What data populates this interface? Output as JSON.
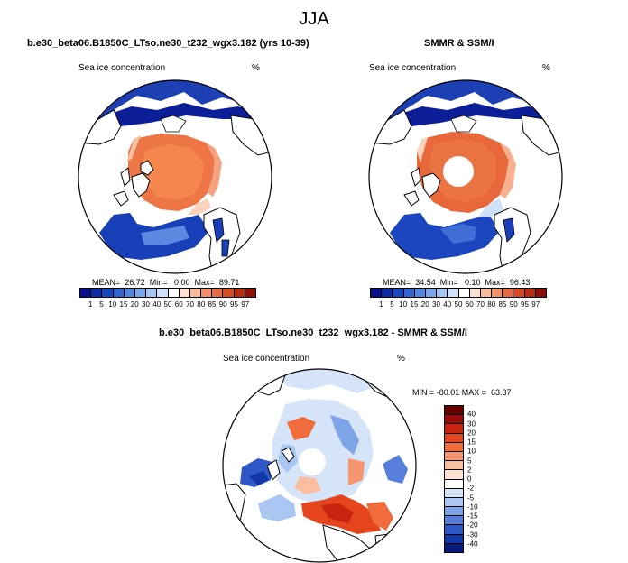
{
  "title": "JJA",
  "panels": {
    "model": {
      "header": "b.e30_beta06.B1850C_LTso.ne30_t232_wgx3.182 (yrs 10-39)",
      "variable": "Sea ice concentration",
      "units": "%",
      "stats": "MEAN=  26.72  Min=   0.00  Max=  89.71"
    },
    "obs": {
      "header": "SMMR & SSM/I",
      "variable": "Sea ice concentration",
      "units": "%",
      "stats": "MEAN=  34.54  Min=   0.10  Max=  96.43"
    },
    "diff": {
      "header": "b.e30_beta06.B1850C_LTso.ne30_t232_wgx3.182 - SMMR & SSM/I",
      "variable": "Sea ice concentration",
      "units": "%",
      "stats": "MIN = -80.01 MAX =  63.37"
    }
  },
  "colorbars": {
    "concentration": {
      "labels": [
        "1",
        "5",
        "10",
        "15",
        "20",
        "30",
        "40",
        "50",
        "60",
        "70",
        "80",
        "85",
        "90",
        "95",
        "97"
      ],
      "colors": [
        "#08108c",
        "#0a2aa6",
        "#1747c0",
        "#2e63d4",
        "#5285e2",
        "#7aa6ee",
        "#a6c5f5",
        "#cfe0fa",
        "#ffffff",
        "#fde0d0",
        "#f9b99c",
        "#f2906a",
        "#e86a40",
        "#d84a20",
        "#b82c10",
        "#8c0e06"
      ]
    },
    "difference": {
      "labels": [
        "40",
        "30",
        "20",
        "15",
        "10",
        "5",
        "2",
        "0",
        "-2",
        "-5",
        "-10",
        "-15",
        "-20",
        "-30",
        "-40"
      ],
      "colors": [
        "#6b0000",
        "#9c0b0b",
        "#c92210",
        "#e5451c",
        "#f06c3c",
        "#f59670",
        "#f9bea0",
        "#fde2d4",
        "#ffffff",
        "#d6e4f9",
        "#aac6f2",
        "#7ea5e8",
        "#567fdb",
        "#2e58c8",
        "#1237a8",
        "#051a80"
      ]
    }
  }
}
